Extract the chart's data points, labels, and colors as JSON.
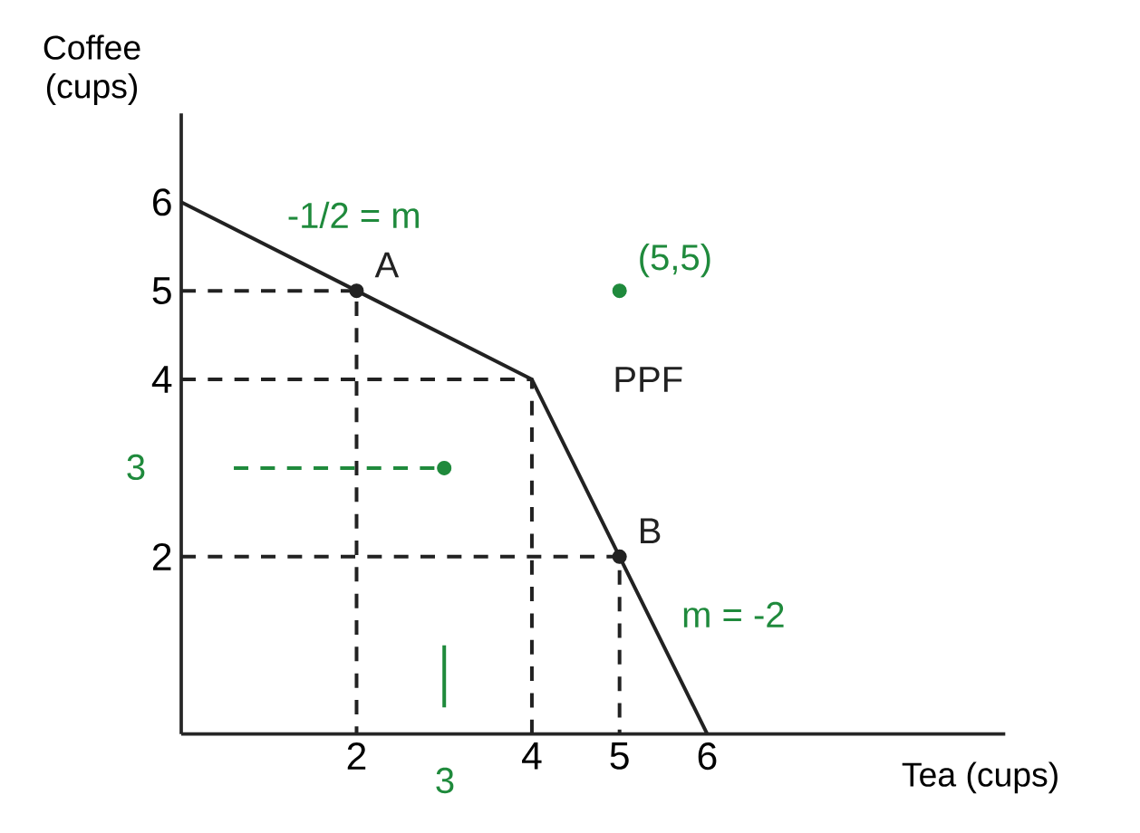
{
  "chart_data": {
    "type": "line",
    "xlabel": "Tea (cups)",
    "ylabel": "Coffee (cups)",
    "xlim": [
      0,
      9.4
    ],
    "ylim": [
      0,
      7
    ],
    "xticks": [
      2,
      4,
      5,
      6
    ],
    "yticks": [
      2,
      4,
      5,
      6
    ],
    "grid": false,
    "series": [
      {
        "name": "PPF",
        "color": "#222222",
        "x": [
          0,
          2,
          4,
          5,
          6
        ],
        "values": [
          6,
          5,
          4,
          2,
          0
        ]
      },
      {
        "type": "line",
        "line_style": "dashed",
        "color": "#222222",
        "x": [
          0,
          2,
          2
        ],
        "values": [
          5,
          5,
          0
        ]
      },
      {
        "type": "line",
        "line_style": "dashed",
        "color": "#222222",
        "x": [
          0,
          4,
          4
        ],
        "values": [
          4,
          4,
          0
        ]
      },
      {
        "type": "line",
        "line_style": "dashed",
        "color": "#222222",
        "x": [
          0,
          5,
          5
        ],
        "values": [
          2,
          2,
          0
        ]
      },
      {
        "name": "A",
        "type": "scatter",
        "marker": "circle",
        "color": "#222222",
        "x": [
          2
        ],
        "values": [
          5
        ]
      },
      {
        "name": "B",
        "type": "scatter",
        "marker": "circle",
        "color": "#222222",
        "x": [
          5
        ],
        "values": [
          2
        ]
      },
      {
        "name": "(5,5)",
        "type": "scatter",
        "marker": "circle",
        "color": "#1f8a3c",
        "x": [
          5
        ],
        "values": [
          5
        ]
      },
      {
        "type": "scatter",
        "marker": "circle",
        "color": "#1f8a3c",
        "x": [
          3
        ],
        "values": [
          3
        ]
      },
      {
        "type": "line",
        "line_style": "dashed",
        "color": "#1f8a3c",
        "x": [
          0.6,
          3
        ],
        "values": [
          3,
          3
        ]
      },
      {
        "type": "line",
        "color": "#1f8a3c",
        "x": [
          3,
          3
        ],
        "values": [
          0.3,
          1
        ]
      }
    ],
    "annotations": [
      {
        "text": "-1/2 = m",
        "x": 1,
        "y": 5.5
      },
      {
        "text": "m = -2",
        "x": 5.5,
        "y": 1
      },
      "3",
      "3"
    ]
  }
}
